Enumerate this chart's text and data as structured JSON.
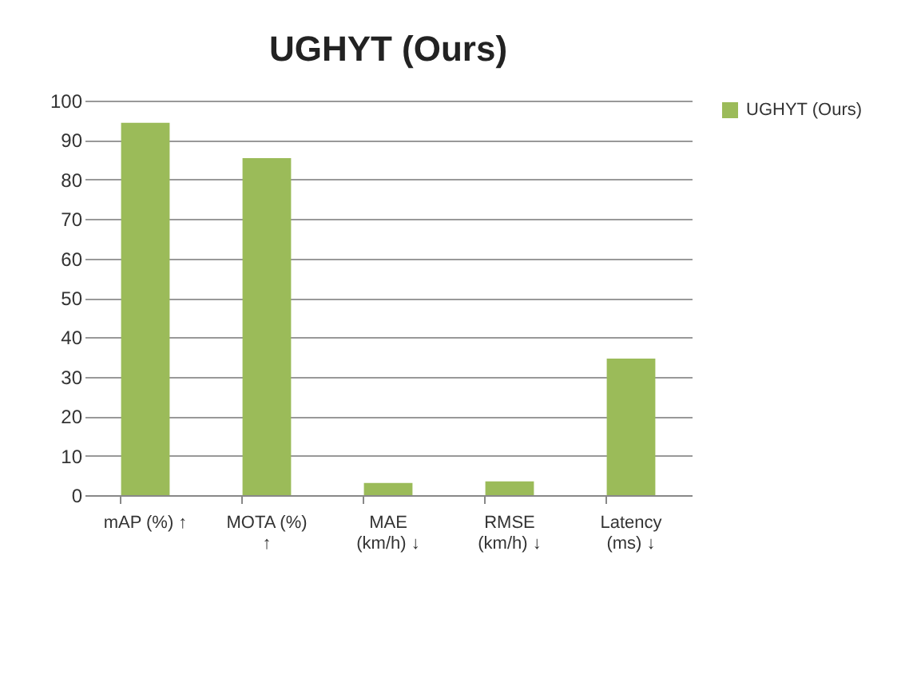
{
  "chart_data": {
    "type": "bar",
    "title": "UGHYT (Ours)",
    "categories": [
      "mAP (%) ↑",
      "MOTA (%) ↑",
      "MAE (km/h) ↓",
      "RMSE (km/h) ↓",
      "Latency (ms) ↓"
    ],
    "series": [
      {
        "name": "UGHYT (Ours)",
        "color": "#9bbb59",
        "values": [
          94.4,
          85.4,
          3.1,
          3.5,
          34.6
        ]
      }
    ],
    "ylim": [
      0,
      100
    ],
    "yticks": [
      0,
      10,
      20,
      30,
      40,
      50,
      60,
      70,
      80,
      90,
      100
    ],
    "grid": "y",
    "legend": "right"
  }
}
